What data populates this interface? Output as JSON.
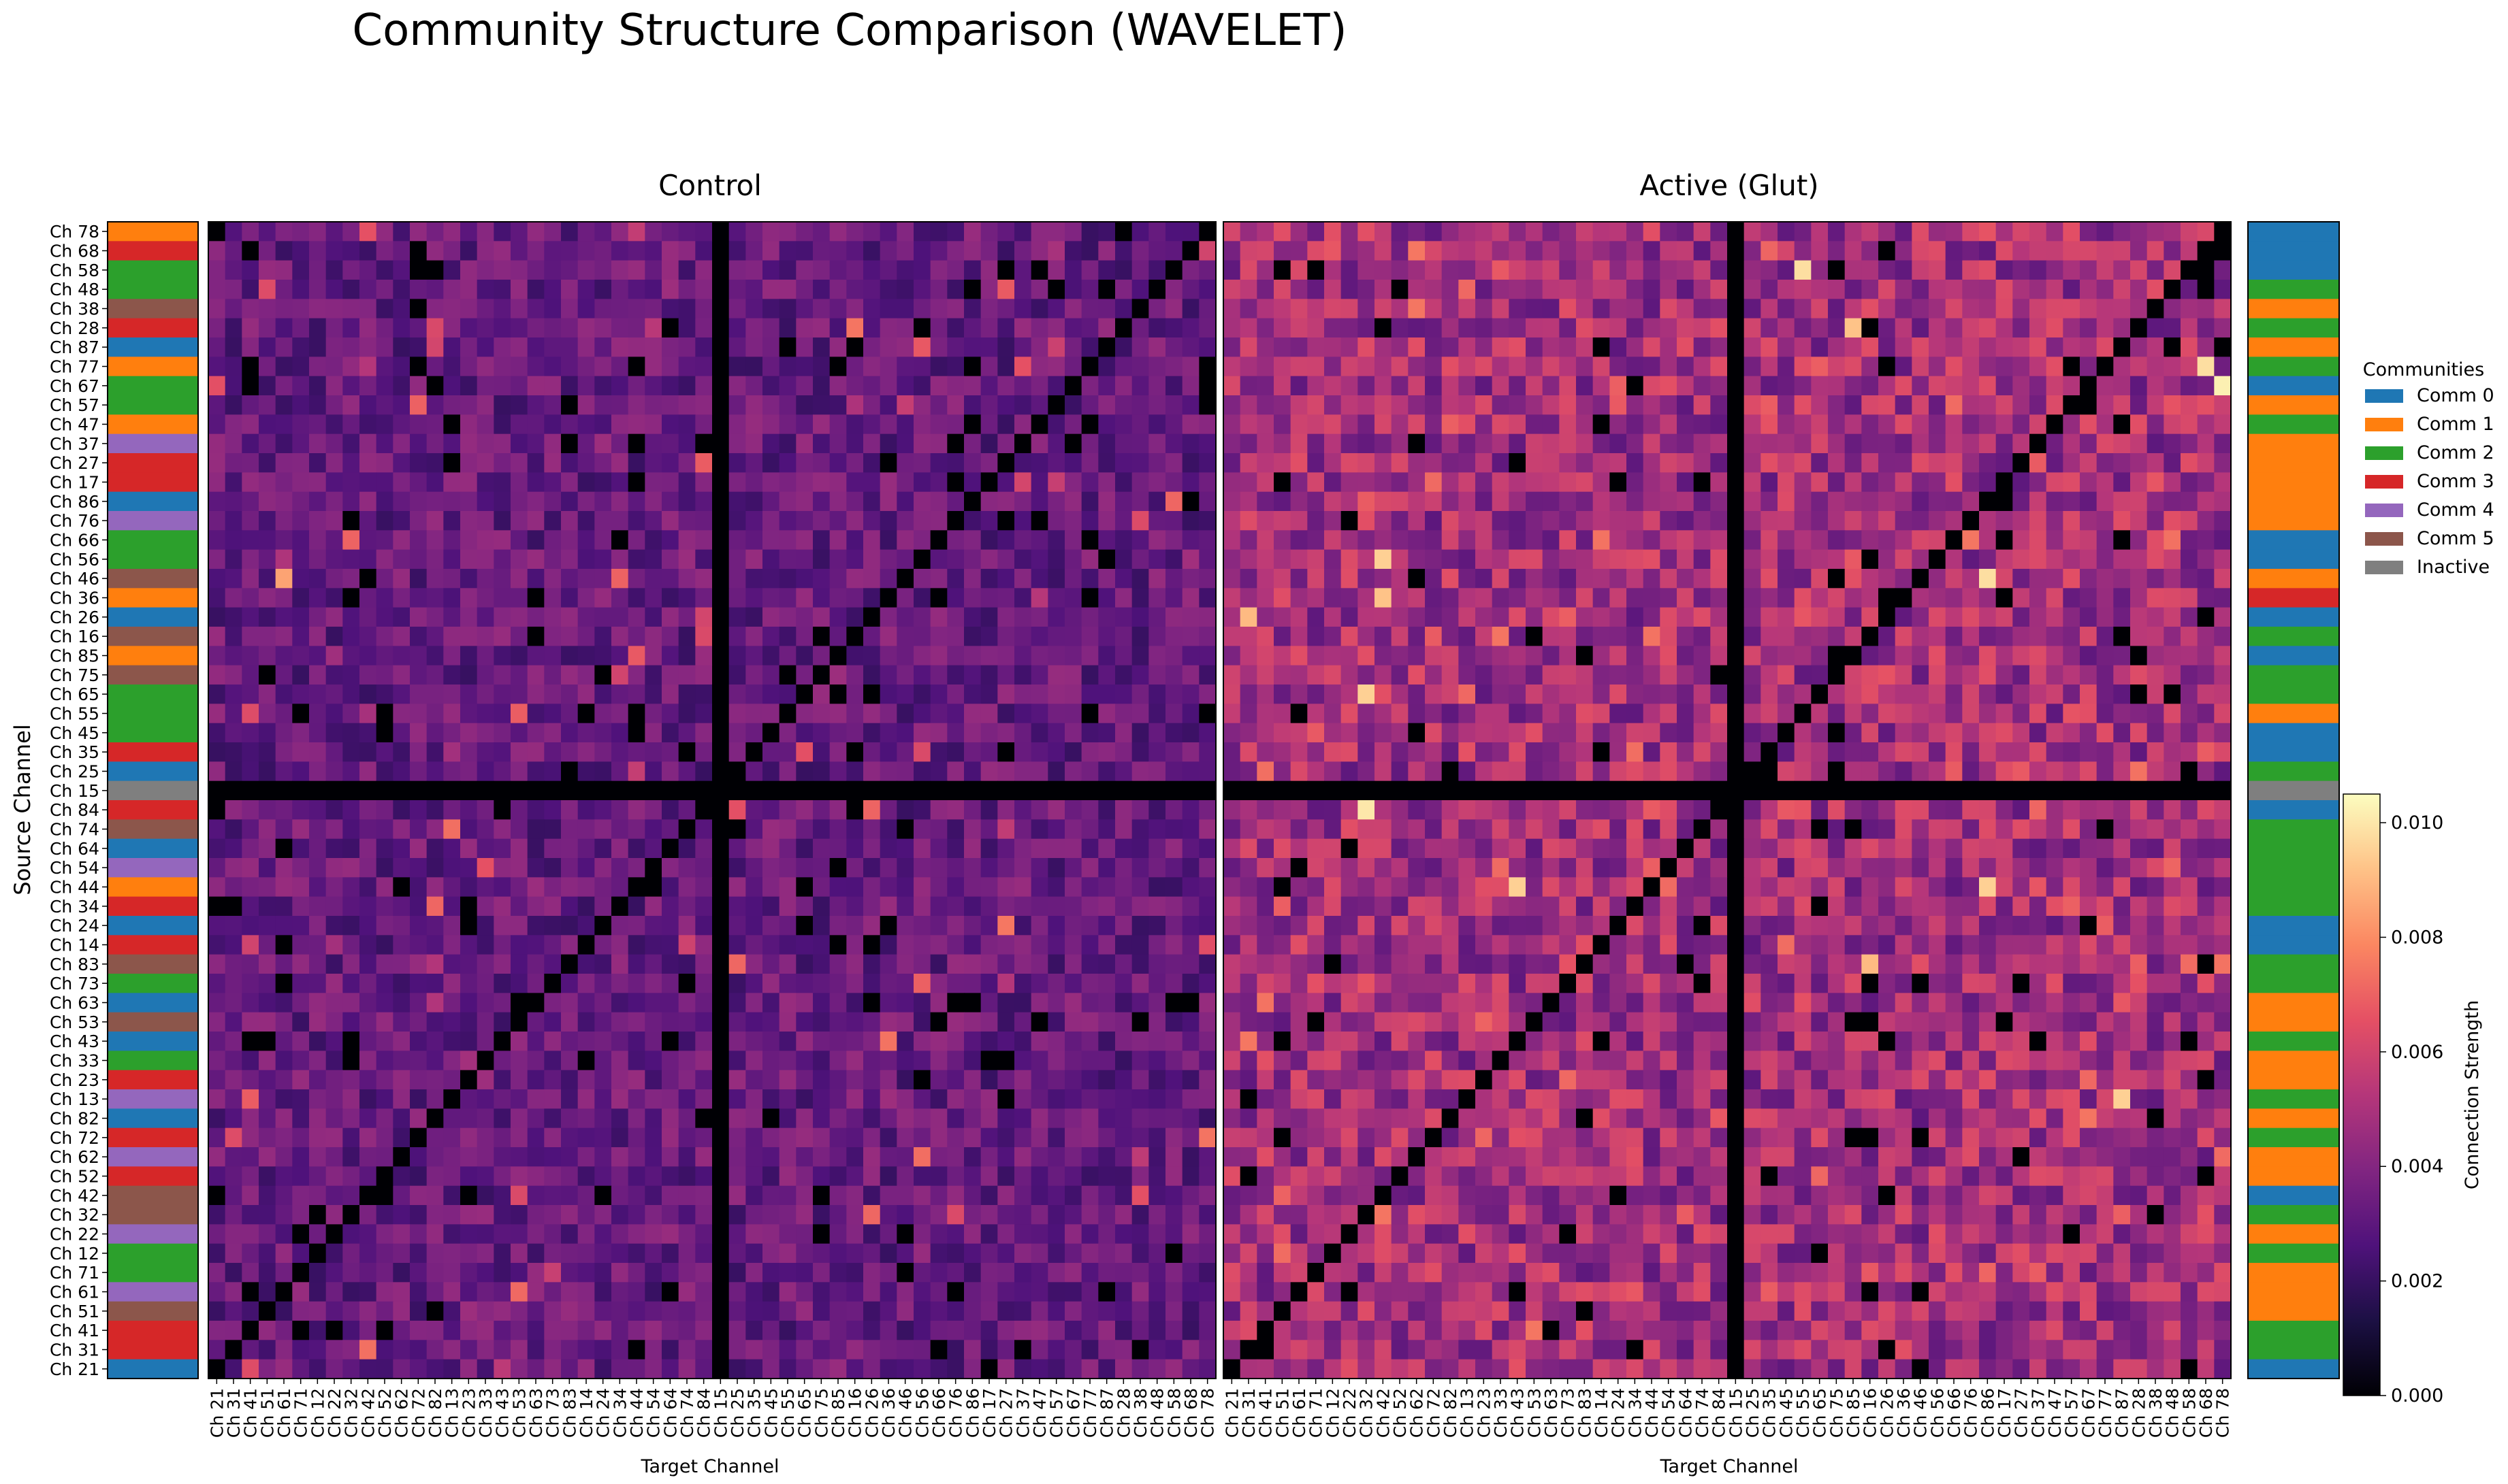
{
  "figure": {
    "title": "Community Structure Comparison (WAVELET)"
  },
  "channels": {
    "y_order_top_to_bottom": [
      "Ch 78",
      "Ch 68",
      "Ch 58",
      "Ch 48",
      "Ch 38",
      "Ch 28",
      "Ch 87",
      "Ch 77",
      "Ch 67",
      "Ch 57",
      "Ch 47",
      "Ch 37",
      "Ch 27",
      "Ch 17",
      "Ch 86",
      "Ch 76",
      "Ch 66",
      "Ch 56",
      "Ch 46",
      "Ch 36",
      "Ch 26",
      "Ch 16",
      "Ch 85",
      "Ch 75",
      "Ch 65",
      "Ch 55",
      "Ch 45",
      "Ch 35",
      "Ch 25",
      "Ch 15",
      "Ch 84",
      "Ch 74",
      "Ch 64",
      "Ch 54",
      "Ch 44",
      "Ch 34",
      "Ch 24",
      "Ch 14",
      "Ch 83",
      "Ch 73",
      "Ch 63",
      "Ch 53",
      "Ch 43",
      "Ch 33",
      "Ch 23",
      "Ch 13",
      "Ch 82",
      "Ch 72",
      "Ch 62",
      "Ch 52",
      "Ch 42",
      "Ch 32",
      "Ch 22",
      "Ch 12",
      "Ch 71",
      "Ch 61",
      "Ch 51",
      "Ch 41",
      "Ch 31",
      "Ch 21"
    ],
    "control_x_order": [
      "Ch 21",
      "Ch 31",
      "Ch 41",
      "Ch 51",
      "Ch 61",
      "Ch 71",
      "Ch 12",
      "Ch 22",
      "Ch 32",
      "Ch 42",
      "Ch 52",
      "Ch 62",
      "Ch 72",
      "Ch 82",
      "Ch 13",
      "Ch 23",
      "Ch 33",
      "Ch 43",
      "Ch 53",
      "Ch 63",
      "Ch 73",
      "Ch 83",
      "Ch 14",
      "Ch 24",
      "Ch 34",
      "Ch 44",
      "Ch 54",
      "Ch 64",
      "Ch 74",
      "Ch 84",
      "Ch 15",
      "Ch 25",
      "Ch 35",
      "Ch 45",
      "Ch 55",
      "Ch 65",
      "Ch 75",
      "Ch 85",
      "Ch 16",
      "Ch 26",
      "Ch 36",
      "Ch 46",
      "Ch 56",
      "Ch 66",
      "Ch 76",
      "Ch 86",
      "Ch 17",
      "Ch 27",
      "Ch 37",
      "Ch 47",
      "Ch 57",
      "Ch 67",
      "Ch 77",
      "Ch 87",
      "Ch 28",
      "Ch 38",
      "Ch 48",
      "Ch 58",
      "Ch 68",
      "Ch 78"
    ],
    "active_x_order": [
      "Ch 21",
      "Ch 31",
      "Ch 41",
      "Ch 51",
      "Ch 61",
      "Ch 71",
      "Ch 12",
      "Ch 22",
      "Ch 32",
      "Ch 42",
      "Ch 52",
      "Ch 62",
      "Ch 72",
      "Ch 82",
      "Ch 13",
      "Ch 23",
      "Ch 33",
      "Ch 43",
      "Ch 53",
      "Ch 63",
      "Ch 73",
      "Ch 83",
      "Ch 14",
      "Ch 24",
      "Ch 34",
      "Ch 44",
      "Ch 54",
      "Ch 64",
      "Ch 74",
      "Ch 84",
      "Ch 15",
      "Ch 25",
      "Ch 35",
      "Ch 45",
      "Ch 55",
      "Ch 65",
      "Ch 75",
      "Ch 85",
      "Ch 16",
      "Ch 26",
      "Ch 36",
      "Ch 46",
      "Ch 56",
      "Ch 66",
      "Ch 76",
      "Ch 86",
      "Ch 17",
      "Ch 27",
      "Ch 37",
      "Ch 47",
      "Ch 57",
      "Ch 67",
      "Ch 77",
      "Ch 87",
      "Ch 28",
      "Ch 38",
      "Ch 48",
      "Ch 58",
      "Ch 68",
      "Ch 78"
    ]
  },
  "community_legend": {
    "title": "Communities",
    "entries": [
      {
        "label": "Comm 0",
        "color": "#1f77b4"
      },
      {
        "label": "Comm 1",
        "color": "#ff7f0e"
      },
      {
        "label": "Comm 2",
        "color": "#2ca02c"
      },
      {
        "label": "Comm 3",
        "color": "#d62728"
      },
      {
        "label": "Comm 4",
        "color": "#9467bd"
      },
      {
        "label": "Comm 5",
        "color": "#8c564b"
      },
      {
        "label": "Inactive",
        "color": "#7f7f7f"
      }
    ]
  },
  "chart_data": [
    {
      "type": "heatmap",
      "title": "Control",
      "xlabel": "Target Channel",
      "ylabel": "Source Channel",
      "diagonal_value": 0,
      "inactive_channel": "Ch 15",
      "inactive_value": 0,
      "typical_value_range": [
        0.002,
        0.0045
      ],
      "notable_cells": [
        {
          "source": "Ch 46",
          "target": "Ch 61",
          "value": 0.0085
        },
        {
          "source": "Ch 84",
          "target": "Ch 25",
          "value": 0.0065
        },
        {
          "source": "Ch 68",
          "target": "Ch 78",
          "value": 0.006
        }
      ],
      "community_sidebar_top_to_bottom": [
        1,
        3,
        2,
        2,
        5,
        3,
        0,
        1,
        2,
        2,
        1,
        4,
        3,
        3,
        0,
        4,
        2,
        2,
        5,
        1,
        0,
        5,
        1,
        5,
        2,
        2,
        2,
        3,
        0,
        6,
        3,
        5,
        0,
        4,
        1,
        3,
        0,
        3,
        5,
        2,
        0,
        5,
        0,
        2,
        3,
        4,
        0,
        3,
        4,
        3,
        5,
        5,
        4,
        2,
        2,
        4,
        5,
        3,
        3,
        0
      ]
    },
    {
      "type": "heatmap",
      "title": "Active (Glut)",
      "xlabel": "Target Channel",
      "diagonal_value": 0,
      "inactive_channel": "Ch 15",
      "inactive_value": 0,
      "typical_value_range": [
        0.003,
        0.0065
      ],
      "notable_cells": [
        {
          "source": "Ch 58",
          "target": "Ch 55",
          "value": 0.0098
        },
        {
          "source": "Ch 28",
          "target": "Ch 85",
          "value": 0.0092
        },
        {
          "source": "Ch 56",
          "target": "Ch 42",
          "value": 0.0095
        },
        {
          "source": "Ch 36",
          "target": "Ch 42",
          "value": 0.0092
        },
        {
          "source": "Ch 46",
          "target": "Ch 86",
          "value": 0.0098
        },
        {
          "source": "Ch 26",
          "target": "Ch 31",
          "value": 0.009
        },
        {
          "source": "Ch 65",
          "target": "Ch 32",
          "value": 0.0095
        },
        {
          "source": "Ch 84",
          "target": "Ch 32",
          "value": 0.01
        },
        {
          "source": "Ch 44",
          "target": "Ch 43",
          "value": 0.0095
        },
        {
          "source": "Ch 44",
          "target": "Ch 86",
          "value": 0.0095
        },
        {
          "source": "Ch 83",
          "target": "Ch 16",
          "value": 0.009
        },
        {
          "source": "Ch 77",
          "target": "Ch 68",
          "value": 0.0098
        },
        {
          "source": "Ch 67",
          "target": "Ch 78",
          "value": 0.0102
        },
        {
          "source": "Ch 13",
          "target": "Ch 87",
          "value": 0.0095
        }
      ],
      "community_sidebar_top_to_bottom": [
        0,
        0,
        0,
        2,
        1,
        2,
        1,
        2,
        0,
        1,
        2,
        1,
        1,
        1,
        1,
        1,
        0,
        0,
        1,
        3,
        0,
        2,
        0,
        2,
        2,
        1,
        0,
        0,
        2,
        6,
        0,
        2,
        2,
        2,
        2,
        2,
        0,
        0,
        2,
        2,
        1,
        1,
        2,
        1,
        1,
        2,
        1,
        2,
        1,
        1,
        0,
        2,
        1,
        2,
        1,
        1,
        1,
        2,
        2,
        0
      ]
    }
  ],
  "colorbar": {
    "label": "Connection Strength",
    "min": 0,
    "max": 0.0105,
    "ticks": [
      "0.000",
      "0.002",
      "0.004",
      "0.006",
      "0.008",
      "0.010"
    ],
    "colormap": "magma"
  }
}
